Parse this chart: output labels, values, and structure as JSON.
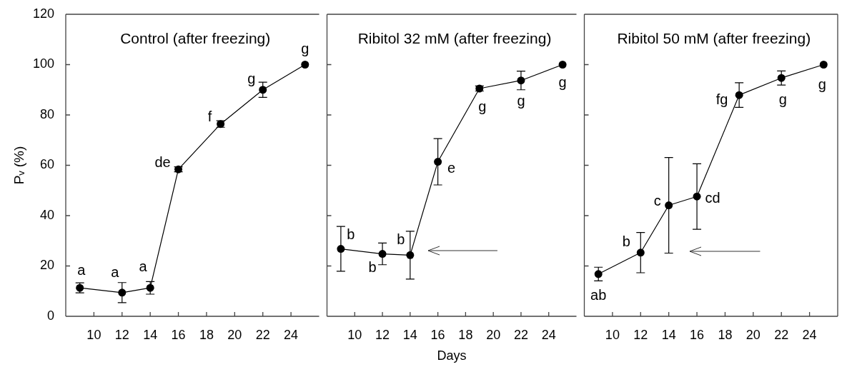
{
  "chart_data": [
    {
      "type": "line",
      "title": "Control (after freezing)",
      "ylabel": "Pᵥ (%)",
      "x": [
        9,
        12,
        14,
        16,
        19,
        22,
        25
      ],
      "series": [
        {
          "color": "#000000",
          "values": [
            11.3,
            9.4,
            11.3,
            58.4,
            76.4,
            90,
            100
          ],
          "errors": [
            2,
            4,
            2.5,
            1,
            1.3,
            3,
            null
          ]
        }
      ],
      "xlim": [
        8,
        26
      ],
      "xticks": [
        10,
        12,
        14,
        16,
        18,
        20,
        22,
        24
      ],
      "ylim": [
        0,
        120
      ],
      "yticks": [
        0,
        20,
        40,
        60,
        80,
        100,
        120
      ],
      "annotations": [
        {
          "text": "a",
          "x": 9,
          "y": 11.3
        },
        {
          "text": "a",
          "x": 12,
          "y": 9.4
        },
        {
          "text": "a",
          "x": 14,
          "y": 11.3
        },
        {
          "text": "de",
          "x": 16,
          "y": 58.4
        },
        {
          "text": "f",
          "x": 19,
          "y": 76.4
        },
        {
          "text": "g",
          "x": 22,
          "y": 90
        },
        {
          "text": "g",
          "x": 25,
          "y": 100
        }
      ],
      "marker": "circle",
      "line_style": "solid",
      "grid": false,
      "legend": false
    },
    {
      "type": "line",
      "title": "Ribitol 32 mM (after freezing)",
      "xlabel": "Days",
      "x": [
        9,
        12,
        14,
        16,
        19,
        22,
        25
      ],
      "series": [
        {
          "color": "#000000",
          "values": [
            26.8,
            24.8,
            24.3,
            61.4,
            90.5,
            93.7,
            100
          ],
          "errors": [
            8.9,
            4.3,
            9.5,
            9.2,
            1,
            3.7,
            null
          ]
        }
      ],
      "xlim": [
        8,
        26
      ],
      "xticks": [
        10,
        12,
        14,
        16,
        18,
        20,
        22,
        24
      ],
      "ylim": [
        0,
        120
      ],
      "yticks": [
        0,
        20,
        40,
        60,
        80,
        100,
        120
      ],
      "annotations": [
        {
          "text": "b",
          "x": 9,
          "y": 26.8
        },
        {
          "text": "b",
          "x": 12,
          "y": 24.8
        },
        {
          "text": "b",
          "x": 14,
          "y": 24.3
        },
        {
          "text": "e",
          "x": 16,
          "y": 61.4
        },
        {
          "text": "g",
          "x": 19,
          "y": 90.5
        },
        {
          "text": "g",
          "x": 22,
          "y": 93.7
        },
        {
          "text": "g",
          "x": 25,
          "y": 100
        }
      ],
      "marker": "circle",
      "line_style": "solid",
      "grid": false,
      "legend": false,
      "tick_labels": "x"
    },
    {
      "type": "line",
      "title": "Ribitol 50 mM (after freezing)",
      "x": [
        9,
        12,
        14,
        16,
        19,
        22,
        25
      ],
      "series": [
        {
          "color": "#000000",
          "values": [
            16.8,
            25.3,
            44.1,
            47.6,
            87.9,
            94.7,
            100
          ],
          "errors": [
            2.7,
            8,
            19,
            13,
            4.9,
            2.8,
            null
          ]
        }
      ],
      "xlim": [
        8,
        26
      ],
      "xticks": [
        10,
        12,
        14,
        16,
        18,
        20,
        22,
        24
      ],
      "ylim": [
        0,
        120
      ],
      "yticks": [
        0,
        20,
        40,
        60,
        80,
        100,
        120
      ],
      "annotations": [
        {
          "text": "ab",
          "x": 9,
          "y": 16.8
        },
        {
          "text": "b",
          "x": 12,
          "y": 25.3
        },
        {
          "text": "c",
          "x": 14,
          "y": 44.1
        },
        {
          "text": "cd",
          "x": 16,
          "y": 47.6
        },
        {
          "text": "fg",
          "x": 19,
          "y": 87.9
        },
        {
          "text": "g",
          "x": 22,
          "y": 94.7
        },
        {
          "text": "g",
          "x": 25,
          "y": 100
        }
      ],
      "marker": "circle",
      "line_style": "solid",
      "grid": false,
      "legend": false,
      "tick_labels": "x"
    }
  ]
}
